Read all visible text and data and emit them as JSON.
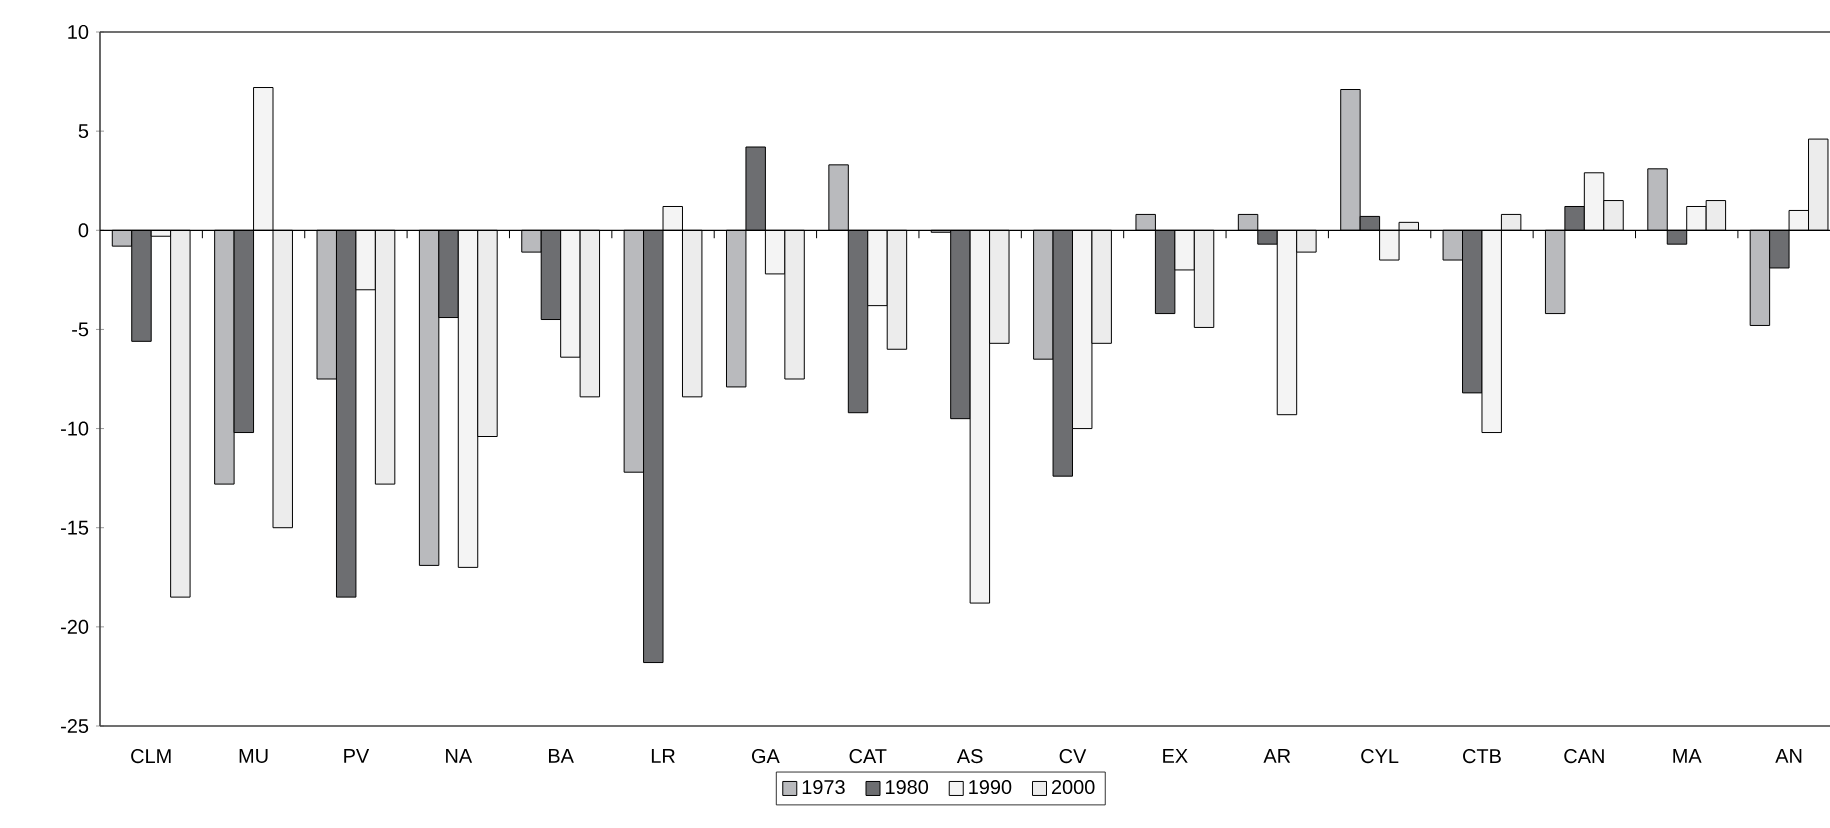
{
  "chart_data": {
    "type": "bar",
    "categories": [
      "CLM",
      "MU",
      "PV",
      "NA",
      "BA",
      "LR",
      "GA",
      "CAT",
      "AS",
      "CV",
      "EX",
      "AR",
      "CYL",
      "CTB",
      "CAN",
      "MA",
      "AN"
    ],
    "series": [
      {
        "name": "1973",
        "color": "#b9babd",
        "values": [
          -0.8,
          -12.8,
          -7.5,
          -16.9,
          -1.1,
          -12.2,
          -7.9,
          3.3,
          -0.1,
          -6.5,
          0.8,
          0.8,
          7.1,
          -1.5,
          -4.2,
          3.1,
          -4.8
        ]
      },
      {
        "name": "1980",
        "color": "#6d6e71",
        "values": [
          -5.6,
          -10.2,
          -18.5,
          -4.4,
          -4.5,
          -21.8,
          4.2,
          -9.2,
          -9.5,
          -12.4,
          -4.2,
          -0.7,
          0.7,
          -8.2,
          1.2,
          -0.7,
          -1.9
        ]
      },
      {
        "name": "1990",
        "color": "#f4f4f4",
        "values": [
          -0.3,
          7.2,
          -3.0,
          -17.0,
          -6.4,
          1.2,
          -2.2,
          -3.8,
          -18.8,
          -10.0,
          -2.0,
          -9.3,
          -1.5,
          -10.2,
          2.9,
          1.2,
          1.0
        ]
      },
      {
        "name": "2000",
        "color": "#ececec",
        "values": [
          -18.5,
          -15.0,
          -12.8,
          -10.4,
          -8.4,
          -8.4,
          -7.5,
          -6.0,
          -5.7,
          -5.7,
          -4.9,
          -1.1,
          0.4,
          0.8,
          1.5,
          1.5,
          4.6
        ]
      }
    ],
    "ref_lines": [
      {
        "axis": "y",
        "value": 0,
        "color": "#000000"
      }
    ],
    "ylim": [
      -25,
      10
    ],
    "yticks": [
      -25,
      -20,
      -15,
      -10,
      -5,
      0,
      5,
      10
    ],
    "grid": false,
    "legend": "bottom"
  }
}
